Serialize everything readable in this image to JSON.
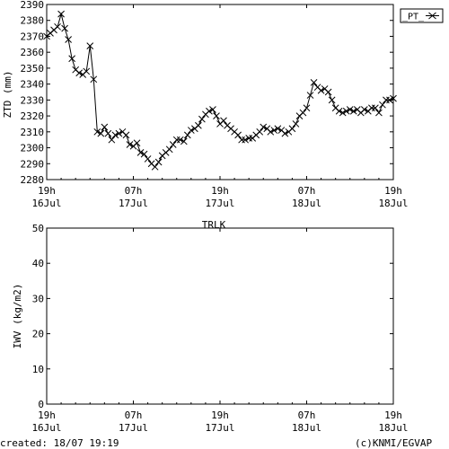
{
  "chart_data": [
    {
      "type": "line",
      "ylabel": "ZTD (mm)",
      "ylim": [
        2280,
        2390
      ],
      "yticks": [
        2280,
        2290,
        2300,
        2310,
        2320,
        2330,
        2340,
        2350,
        2360,
        2370,
        2380,
        2390
      ],
      "xlim": [
        0,
        48
      ],
      "xticks": [
        {
          "h": 0,
          "top": "19h",
          "bottom": "16Jul"
        },
        {
          "h": 12,
          "top": "07h",
          "bottom": "17Jul"
        },
        {
          "h": 24,
          "top": "19h",
          "bottom": "17Jul"
        },
        {
          "h": 36,
          "top": "07h",
          "bottom": "18Jul"
        },
        {
          "h": 48,
          "top": "19h",
          "bottom": "18Jul"
        }
      ],
      "legend": {
        "label": "_PT_",
        "position": "right"
      },
      "series": [
        {
          "name": "_PT_",
          "x": [
            0,
            0.5,
            1,
            1.5,
            2,
            2.5,
            3,
            3.5,
            4,
            4.5,
            5,
            5.5,
            6,
            6.5,
            7,
            7.5,
            8,
            8.5,
            9,
            9.5,
            10,
            10.5,
            11,
            11.5,
            12,
            12.5,
            13,
            13.5,
            14,
            14.5,
            15,
            15.5,
            16,
            16.5,
            17,
            17.5,
            18,
            18.5,
            19,
            19.5,
            20,
            20.5,
            21,
            21.5,
            22,
            22.5,
            23,
            23.5,
            24,
            24.5,
            25,
            25.5,
            26,
            26.5,
            27,
            27.5,
            28,
            28.5,
            29,
            29.5,
            30,
            30.5,
            31,
            31.5,
            32,
            32.5,
            33,
            33.5,
            34,
            34.5,
            35,
            35.5,
            36,
            36.5,
            37,
            37.5,
            38,
            38.5,
            39,
            39.5,
            40,
            40.5,
            41,
            41.5,
            42,
            42.5,
            43,
            43.5,
            44,
            44.5,
            45,
            45.5,
            46,
            46.5,
            47,
            47.5,
            48
          ],
          "y": [
            2370,
            2372,
            2374,
            2376,
            2384,
            2375,
            2368,
            2356,
            2349,
            2347,
            2346,
            2348,
            2364,
            2343,
            2310,
            2309,
            2313,
            2309,
            2305,
            2308,
            2309,
            2310,
            2308,
            2302,
            2301,
            2303,
            2297,
            2296,
            2293,
            2290,
            2288,
            2291,
            2295,
            2297,
            2299,
            2302,
            2305,
            2305,
            2304,
            2308,
            2311,
            2312,
            2314,
            2318,
            2321,
            2323,
            2324,
            2320,
            2315,
            2317,
            2314,
            2312,
            2310,
            2308,
            2305,
            2305,
            2306,
            2306,
            2308,
            2310,
            2313,
            2312,
            2310,
            2311,
            2312,
            2311,
            2309,
            2310,
            2312,
            2315,
            2320,
            2322,
            2325,
            2333,
            2341,
            2338,
            2336,
            2337,
            2335,
            2330,
            2325,
            2323,
            2322,
            2323,
            2324,
            2323,
            2324,
            2322,
            2324,
            2323,
            2325,
            2325,
            2322,
            2327,
            2330,
            2330,
            2331
          ]
        }
      ]
    },
    {
      "type": "line",
      "title": "TRLK",
      "ylabel": "IWV (kg/m2)",
      "ylim": [
        0,
        50
      ],
      "yticks": [
        0,
        10,
        20,
        30,
        40,
        50
      ],
      "xlim": [
        0,
        48
      ],
      "xticks": [
        {
          "h": 0,
          "top": "19h",
          "bottom": "16Jul"
        },
        {
          "h": 12,
          "top": "07h",
          "bottom": "17Jul"
        },
        {
          "h": 24,
          "top": "19h",
          "bottom": "17Jul"
        },
        {
          "h": 36,
          "top": "07h",
          "bottom": "18Jul"
        },
        {
          "h": 48,
          "top": "19h",
          "bottom": "18Jul"
        }
      ],
      "series": []
    }
  ],
  "footer": {
    "created": "created: 18/07 19:19",
    "credit": "(c)KNMI/EGVAP"
  }
}
